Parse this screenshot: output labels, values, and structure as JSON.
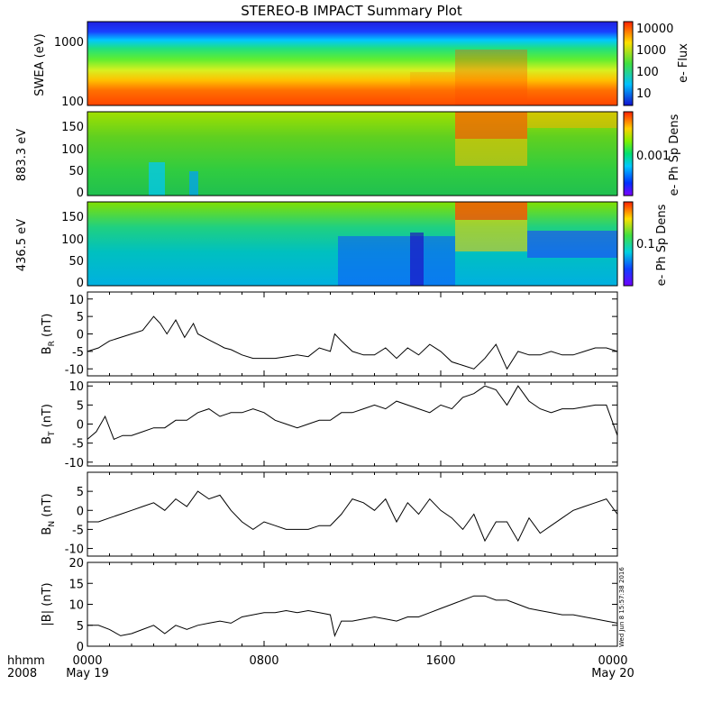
{
  "title": "STEREO-B IMPACT Summary Plot",
  "timestamp": "Wed Jun  8 15:57:38 2016",
  "chart_data": [
    {
      "type": "heatmap",
      "ylabel": "SWEA (eV)",
      "ytick_labels": [
        "1000",
        "100"
      ],
      "yscale": "log",
      "colorbar": {
        "label": "e- Flux",
        "tick_labels": [
          "10000",
          "1000",
          "100",
          "10"
        ],
        "scale": "log",
        "range": [
          2,
          20000
        ]
      }
    },
    {
      "type": "heatmap",
      "ylabel": "883.3 eV",
      "ytick_labels": [
        "150",
        "100",
        "50",
        "0"
      ],
      "ylim": [
        0,
        180
      ],
      "colorbar": {
        "label": "e- Ph Sp Dens",
        "tick_labels": [
          "0.001"
        ]
      }
    },
    {
      "type": "heatmap",
      "ylabel": "436.5 eV",
      "ytick_labels": [
        "150",
        "100",
        "50",
        "0"
      ],
      "ylim": [
        0,
        180
      ],
      "colorbar": {
        "label": "e- Ph Sp Dens",
        "tick_labels": [
          "0.1"
        ]
      }
    },
    {
      "type": "line",
      "ylabel": {
        "main": "B",
        "sub": "R",
        "unit": " (nT)"
      },
      "ylim": [
        -12,
        12
      ],
      "ytick_labels": [
        "10",
        "5",
        "0",
        "-5",
        "-10"
      ],
      "yticks": [
        10,
        5,
        0,
        -5,
        -10
      ],
      "x": [
        0,
        0.5,
        1,
        1.5,
        2,
        2.5,
        3,
        3.3,
        3.6,
        4,
        4.4,
        4.8,
        5,
        5.3,
        5.6,
        5.9,
        6.2,
        6.5,
        7,
        7.5,
        8,
        8.5,
        9,
        9.5,
        10,
        10.5,
        11,
        11.2,
        11.5,
        12,
        12.5,
        13,
        13.5,
        14,
        14.5,
        15,
        15.5,
        16,
        16.5,
        17,
        17.5,
        18,
        18.5,
        19,
        19.5,
        20,
        20.5,
        21,
        21.5,
        22,
        22.5,
        23,
        23.5,
        24
      ],
      "y": [
        -5,
        -4,
        -2,
        -1,
        0,
        1,
        5,
        3,
        0,
        4,
        -1,
        3,
        0,
        -1,
        -2,
        -3,
        -4,
        -4.5,
        -6,
        -7,
        -7,
        -7,
        -6.5,
        -6,
        -6.5,
        -4,
        -5,
        0,
        -2,
        -5,
        -6,
        -6,
        -4,
        -7,
        -4,
        -6,
        -3,
        -5,
        -8,
        -9,
        -10,
        -7,
        -3,
        -10,
        -5,
        -6,
        -6,
        -5,
        -6,
        -6,
        -5,
        -4,
        -4,
        -5
      ]
    },
    {
      "type": "line",
      "ylabel": {
        "main": "B",
        "sub": "T",
        "unit": " (nT)"
      },
      "ylim": [
        -11,
        11
      ],
      "ytick_labels": [
        "10",
        "5",
        "0",
        "-5",
        "-10"
      ],
      "yticks": [
        10,
        5,
        0,
        -5,
        -10
      ],
      "x": [
        0,
        0.4,
        0.8,
        1.2,
        1.6,
        2,
        2.5,
        3,
        3.5,
        4,
        4.5,
        5,
        5.5,
        6,
        6.5,
        7,
        7.5,
        8,
        8.5,
        9,
        9.5,
        10,
        10.5,
        11,
        11.5,
        12,
        12.5,
        13,
        13.5,
        14,
        14.5,
        15,
        15.5,
        16,
        16.5,
        17,
        17.5,
        18,
        18.5,
        19,
        19.5,
        20,
        20.5,
        21,
        21.5,
        22,
        22.5,
        23,
        23.5,
        24
      ],
      "y": [
        -4,
        -2,
        2,
        -4,
        -3,
        -3,
        -2,
        -1,
        -1,
        1,
        1,
        3,
        4,
        2,
        3,
        3,
        4,
        3,
        1,
        0,
        -1,
        0,
        1,
        1,
        3,
        3,
        4,
        5,
        4,
        6,
        5,
        4,
        3,
        5,
        4,
        7,
        8,
        10,
        9,
        5,
        10,
        6,
        4,
        3,
        4,
        4,
        4.5,
        5,
        5,
        -3
      ]
    },
    {
      "type": "line",
      "ylabel": {
        "main": "B",
        "sub": "N",
        "unit": " (nT)"
      },
      "ylim": [
        -12,
        10
      ],
      "ytick_labels": [
        "5",
        "0",
        "-5",
        "-10"
      ],
      "yticks": [
        5,
        0,
        -5,
        -10
      ],
      "x": [
        0,
        0.5,
        1,
        1.5,
        2,
        2.5,
        3,
        3.5,
        4,
        4.5,
        5,
        5.5,
        6,
        6.5,
        7,
        7.5,
        8,
        8.5,
        9,
        9.5,
        10,
        10.5,
        11,
        11.5,
        12,
        12.5,
        13,
        13.5,
        14,
        14.5,
        15,
        15.5,
        16,
        16.5,
        17,
        17.5,
        18,
        18.5,
        19,
        19.5,
        20,
        20.5,
        21,
        21.5,
        22,
        22.5,
        23,
        23.5,
        24
      ],
      "y": [
        -3,
        -3,
        -2,
        -1,
        0,
        1,
        2,
        0,
        3,
        1,
        5,
        3,
        4,
        0,
        -3,
        -5,
        -3,
        -4,
        -5,
        -5,
        -5,
        -4,
        -4,
        -1,
        3,
        2,
        0,
        3,
        -3,
        2,
        -1,
        3,
        0,
        -2,
        -5,
        -1,
        -8,
        -3,
        -3,
        -8,
        -2,
        -6,
        -4,
        -2,
        0,
        1,
        2,
        3,
        -1
      ]
    },
    {
      "type": "line",
      "ylabel": {
        "main": "|B|",
        "sub": "",
        "unit": " (nT)"
      },
      "ylim": [
        0,
        20
      ],
      "ytick_labels": [
        "20",
        "15",
        "10",
        "5",
        "0"
      ],
      "yticks": [
        20,
        15,
        10,
        5,
        0
      ],
      "x": [
        0,
        0.5,
        1,
        1.5,
        2,
        2.5,
        3,
        3.5,
        4,
        4.5,
        5,
        5.5,
        6,
        6.5,
        7,
        7.5,
        8,
        8.5,
        9,
        9.5,
        10,
        10.5,
        11,
        11.2,
        11.5,
        12,
        12.5,
        13,
        13.5,
        14,
        14.5,
        15,
        15.5,
        16,
        16.5,
        17,
        17.5,
        18,
        18.5,
        19,
        19.5,
        20,
        20.5,
        21,
        21.5,
        22,
        22.5,
        23,
        23.5,
        24
      ],
      "y": [
        5,
        5,
        4,
        2.5,
        3,
        4,
        5,
        3,
        5,
        4,
        5,
        5.5,
        6,
        5.5,
        7,
        7.5,
        8,
        8,
        8.5,
        8,
        8.5,
        8,
        7.5,
        2.5,
        6,
        6,
        6.5,
        7,
        6.5,
        6,
        7,
        7,
        8,
        9,
        10,
        11,
        12,
        12,
        11,
        11,
        10,
        9,
        8.5,
        8,
        7.5,
        7.5,
        7,
        6.5,
        6,
        5.5
      ]
    }
  ],
  "x_axis": {
    "row1_label": "hhmm",
    "row2_label": "2008",
    "ticks": [
      {
        "time": "0000",
        "date": "May 19",
        "hour": 0
      },
      {
        "time": "0800",
        "date": "",
        "hour": 8
      },
      {
        "time": "1600",
        "date": "",
        "hour": 16
      },
      {
        "time": "0000",
        "date": "May 20",
        "hour": 24
      }
    ]
  }
}
